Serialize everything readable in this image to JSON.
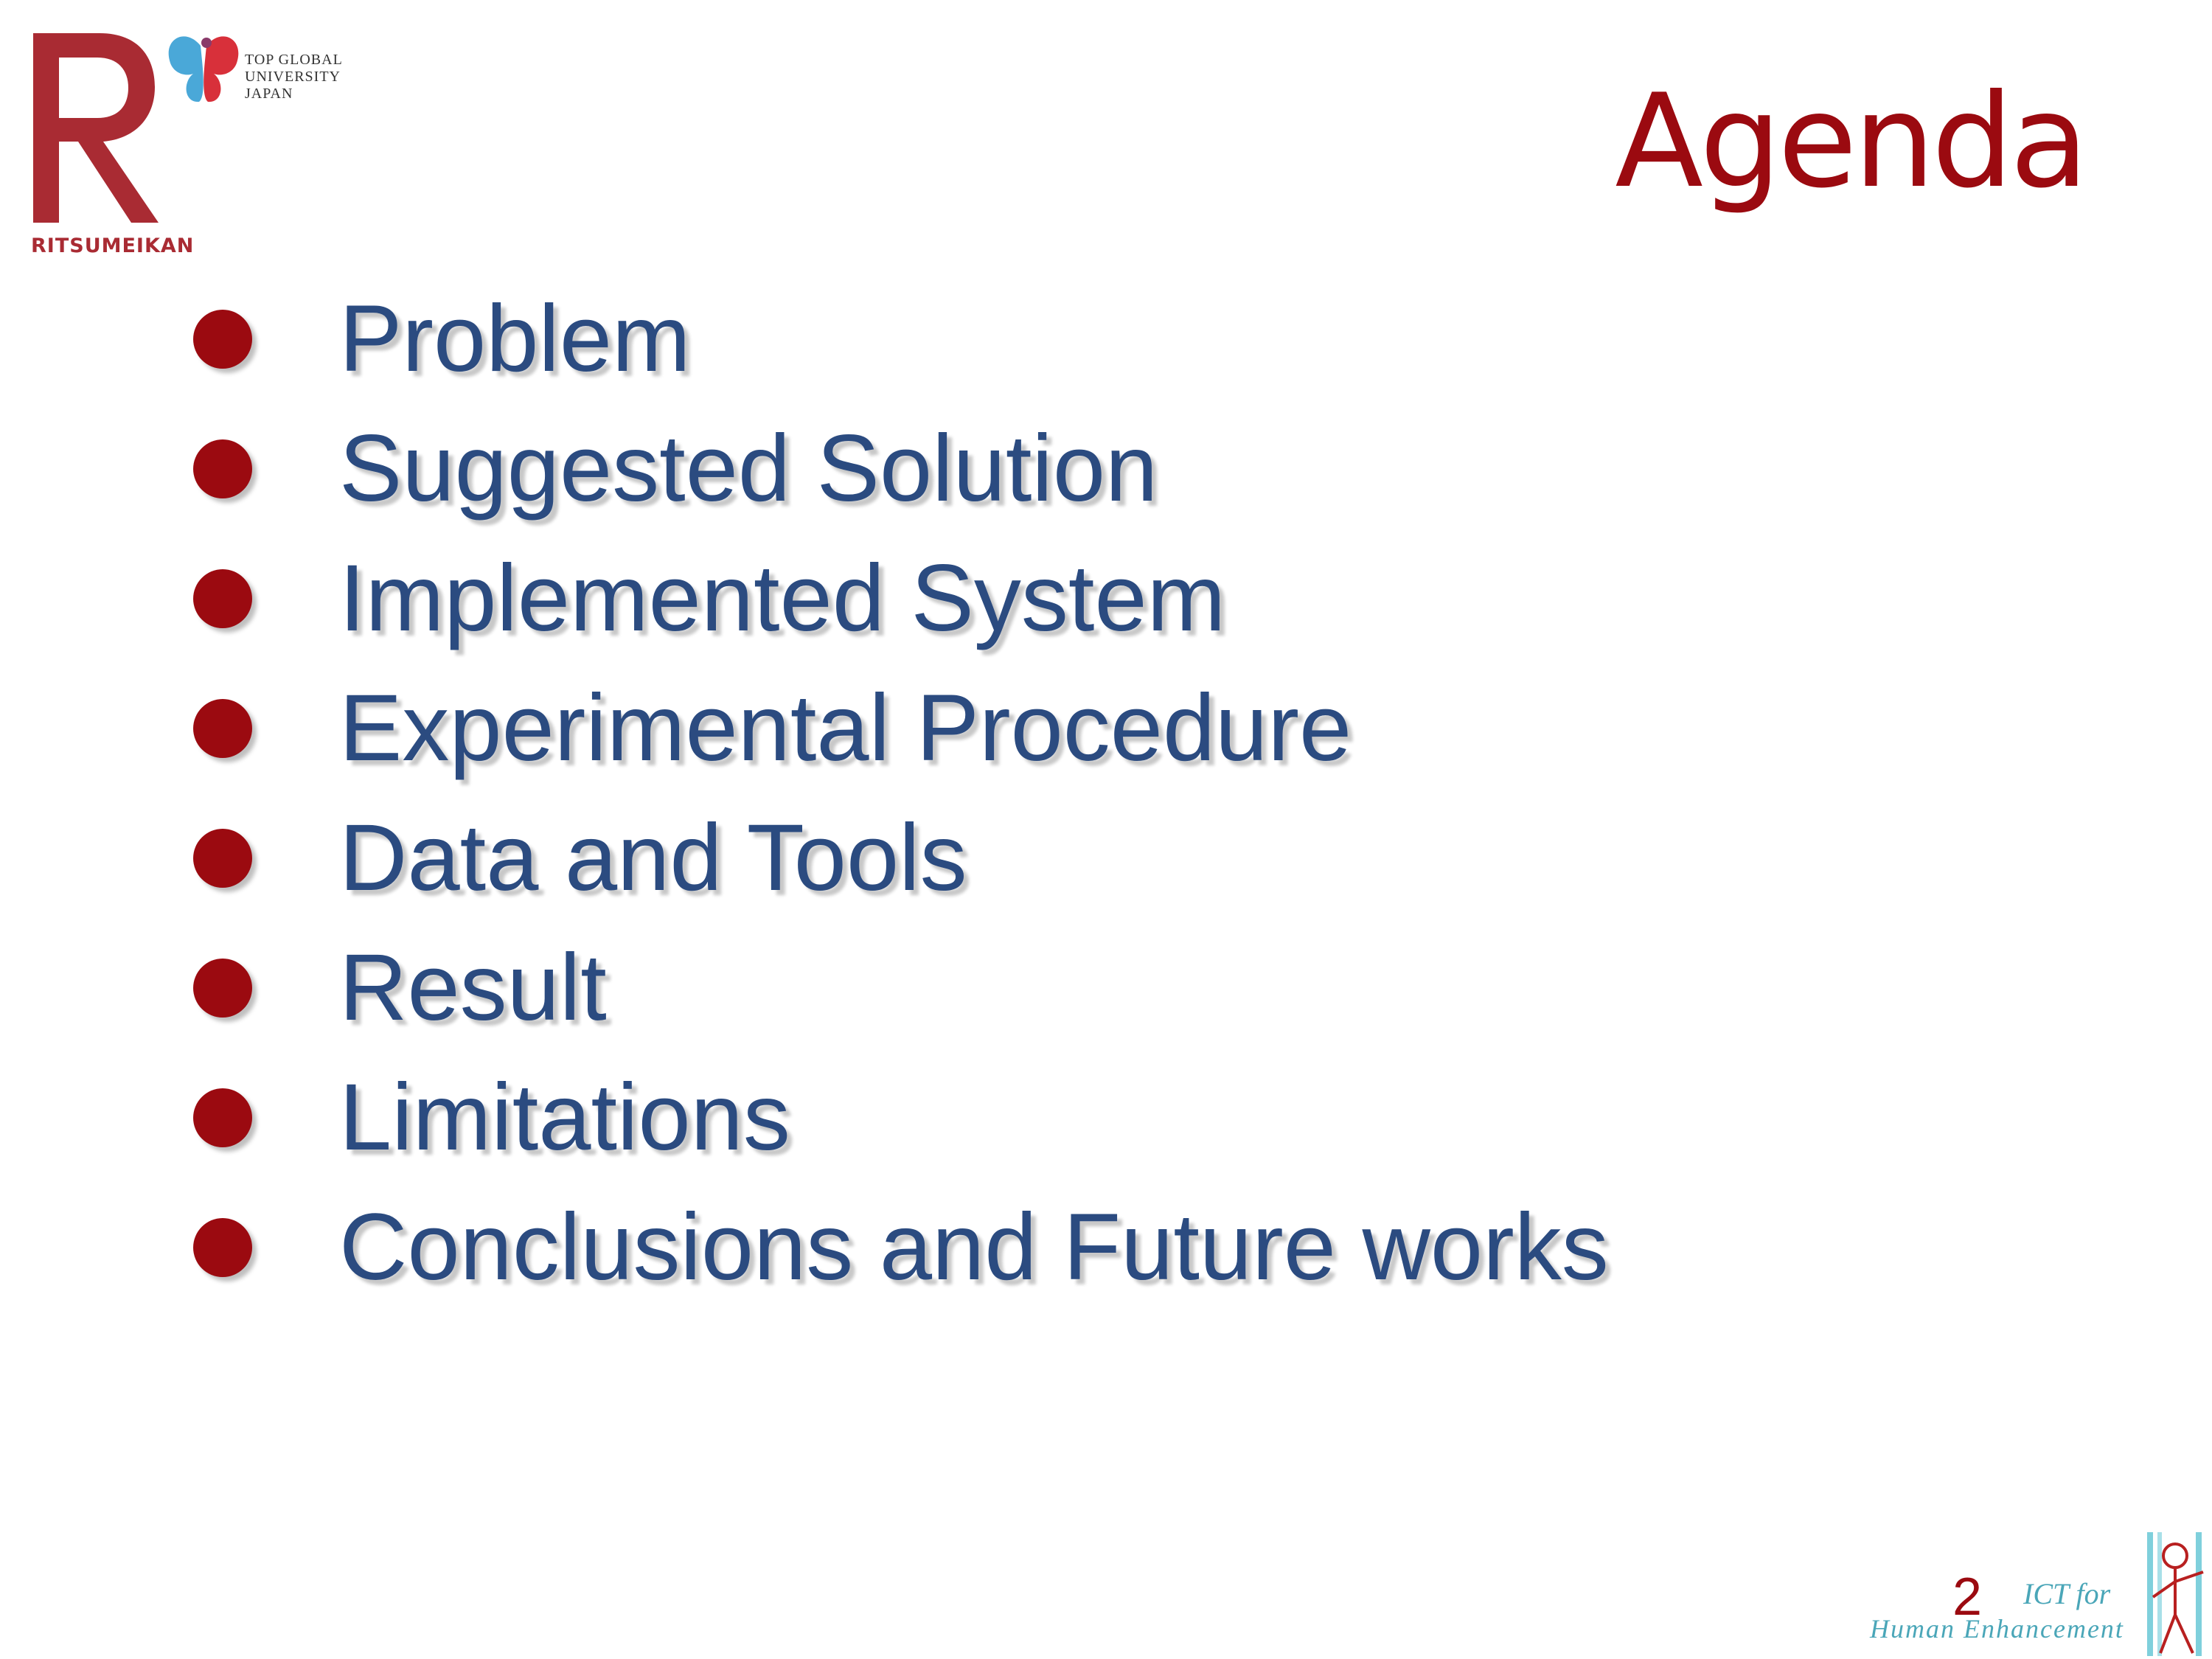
{
  "logo": {
    "wordmark": "RITSUMEIKAN",
    "tagline": [
      "TOP GLOBAL",
      "UNIVERSITY",
      "JAPAN"
    ],
    "brand_color": "#a92b33"
  },
  "slide": {
    "title": "Agenda",
    "title_color": "#9b0a10",
    "text_color": "#2b4b80",
    "page_number": "2"
  },
  "agenda_items": [
    "Problem",
    "Suggested Solution",
    "Implemented System",
    "Experimental Procedure",
    "Data and Tools",
    "Result",
    "Limitations",
    "Conclusions and Future works"
  ],
  "footer_logo": {
    "line1": "ICT for",
    "line2": "Human Enhancement",
    "color": "#4aa6b8"
  }
}
